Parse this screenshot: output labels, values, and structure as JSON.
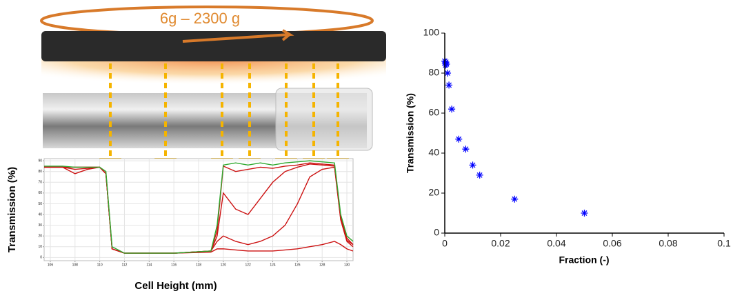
{
  "illustration": {
    "label": "6g – 2300 g"
  },
  "chart_data": [
    {
      "type": "line",
      "xlabel": "Cell Height (mm)",
      "ylabel": "Transmission (%)",
      "x": [
        105.5,
        107,
        108,
        109,
        110,
        110.5,
        111,
        112,
        116,
        119,
        119.5,
        120,
        121,
        122,
        123,
        124,
        125,
        126,
        127,
        128,
        129,
        129.5,
        130,
        130.5
      ],
      "series": [
        {
          "color": "#cc1111",
          "values": [
            84,
            84,
            78,
            82,
            84,
            78,
            8,
            4,
            4,
            6,
            25,
            85,
            80,
            82,
            84,
            83,
            85,
            86,
            88,
            87,
            86,
            38,
            18,
            12
          ]
        },
        {
          "color": "#cc1111",
          "values": [
            84,
            84,
            82,
            83,
            84,
            78,
            8,
            4,
            4,
            6,
            20,
            60,
            45,
            40,
            55,
            70,
            80,
            84,
            87,
            86,
            85,
            36,
            16,
            12
          ]
        },
        {
          "color": "#cc1111",
          "values": [
            84,
            84,
            84,
            84,
            84,
            78,
            8,
            4,
            4,
            6,
            15,
            20,
            15,
            12,
            15,
            20,
            30,
            50,
            75,
            82,
            84,
            35,
            15,
            10
          ]
        },
        {
          "color": "#cc1111",
          "values": [
            84,
            84,
            84,
            84,
            84,
            78,
            8,
            4,
            4,
            5,
            8,
            8,
            7,
            6,
            6,
            6,
            7,
            8,
            10,
            12,
            15,
            12,
            8,
            6
          ]
        },
        {
          "color": "#2fa82f",
          "values": [
            85,
            85,
            84,
            84,
            84,
            80,
            10,
            4,
            4,
            6,
            30,
            86,
            88,
            86,
            88,
            86,
            88,
            89,
            90,
            89,
            88,
            40,
            20,
            15
          ]
        }
      ],
      "xlim": [
        105.5,
        130.5
      ],
      "ylim": [
        -3,
        92
      ],
      "xticks": [
        106,
        108,
        110,
        112,
        114,
        116,
        118,
        120,
        122,
        124,
        126,
        128,
        130
      ],
      "yticks": [
        0,
        10,
        20,
        30,
        40,
        50,
        60,
        70,
        80,
        90
      ],
      "grid": true
    },
    {
      "type": "scatter",
      "xlabel": "Fraction (-)",
      "ylabel": "Transmission (%)",
      "x": [
        0,
        0.0002,
        0.0004,
        0.0006,
        0.0003,
        0.001,
        0.0015,
        0.0025,
        0.005,
        0.0075,
        0.01,
        0.0125,
        0.025,
        0.05
      ],
      "series": [
        {
          "color": "#0000ff",
          "values": [
            86,
            85,
            85.5,
            84.5,
            84,
            80,
            74,
            62,
            47,
            42,
            34,
            29,
            17,
            10
          ]
        }
      ],
      "xlim": [
        0,
        0.1
      ],
      "ylim": [
        0,
        100
      ],
      "xticks": [
        0,
        0.02,
        0.04,
        0.06,
        0.08,
        0.1
      ],
      "yticks": [
        0,
        20,
        40,
        60,
        80,
        100
      ],
      "grid": false
    }
  ]
}
